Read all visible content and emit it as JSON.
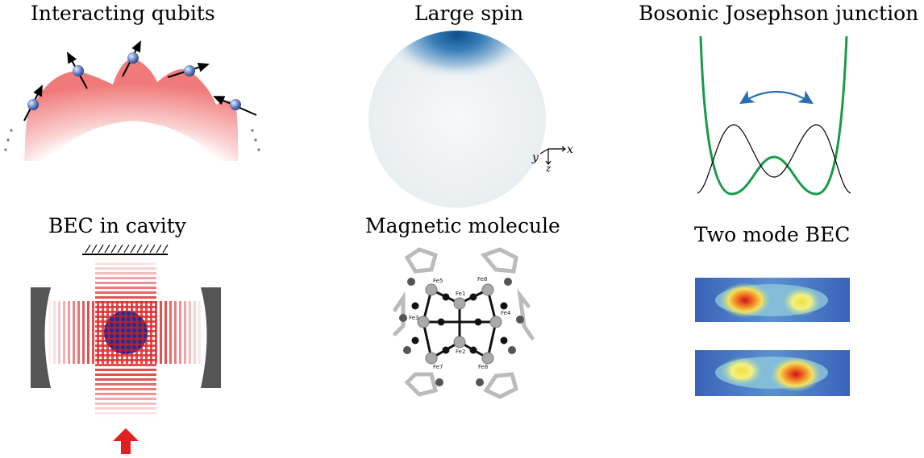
{
  "panels": {
    "qubits": {
      "title": "Interacting qubits"
    },
    "spin": {
      "title": "Large spin",
      "axes": {
        "x": "x",
        "y": "y",
        "z": "z"
      }
    },
    "bjj": {
      "title": "Bosonic Josephson junction"
    },
    "cavity": {
      "title": "BEC in cavity"
    },
    "molecule": {
      "title": "Magnetic molecule",
      "atoms": {
        "fe1": "Fe1",
        "fe2": "Fe2",
        "fe3": "Fe3",
        "fe4": "Fe4",
        "fe5": "Fe5",
        "fe6": "Fe6",
        "fe7": "Fe7",
        "fe8": "Fe8"
      }
    },
    "twomode": {
      "title": "Two mode BEC"
    }
  },
  "colors": {
    "qubit_arc": "#f07a7a",
    "spin_cap": "#1f5f9c",
    "potential": "#1a9a4a",
    "tunneling_arrow": "#2a6db0",
    "laser": "#d62020",
    "mirror": "#555555"
  }
}
